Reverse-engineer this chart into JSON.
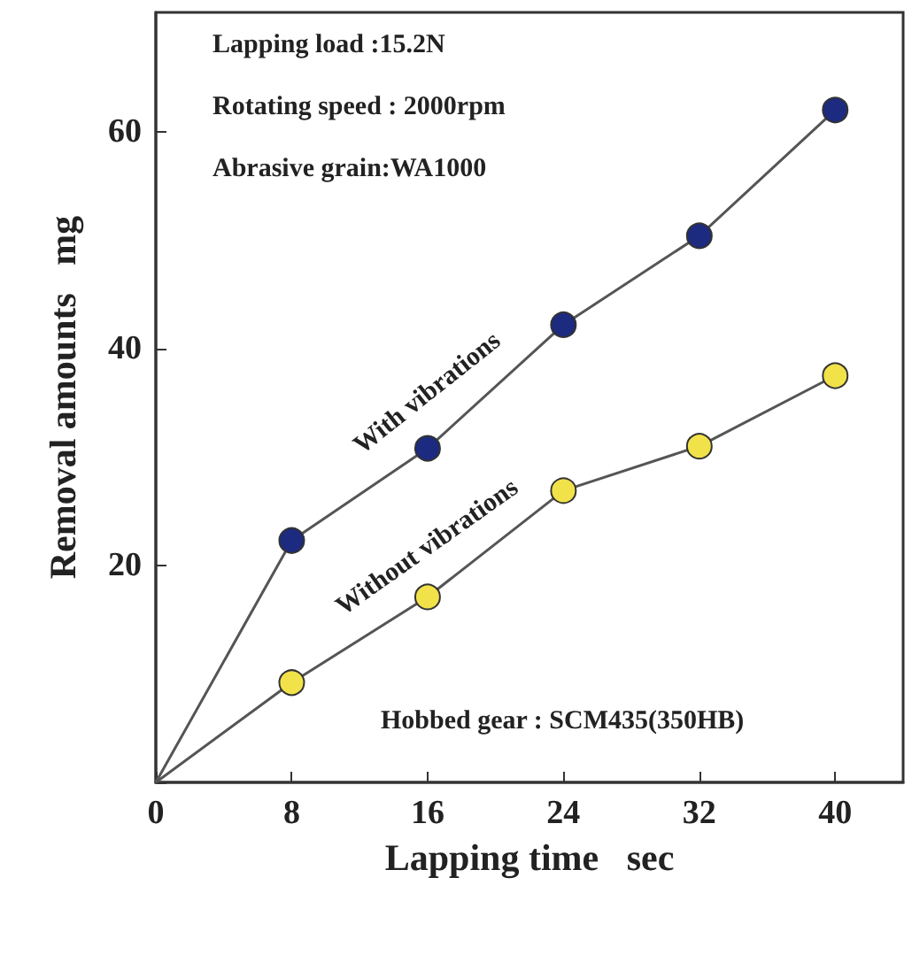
{
  "chart_data": {
    "type": "line",
    "xlabel": "Lapping time   sec",
    "ylabel": "Removal amounts   mg",
    "x": [
      0,
      8,
      16,
      24,
      32,
      40
    ],
    "series": [
      {
        "name": "With vibrations",
        "color": "#1c2a80",
        "values": [
          0,
          22.3,
          30.8,
          42.2,
          50.4,
          62
        ]
      },
      {
        "name": "Without vibrations",
        "color": "#f2e24a",
        "values": [
          0,
          9.2,
          17.1,
          26.9,
          31,
          37.5
        ]
      }
    ],
    "xlim": [
      0,
      44
    ],
    "xticks": [
      0,
      8,
      16,
      24,
      32,
      40
    ],
    "ylim": [
      0,
      71
    ],
    "yticks": [
      {
        "value": 0,
        "label": null
      },
      20,
      40,
      60
    ],
    "annotations": [
      "Lapping load :15.2N",
      "Rotating speed : 2000rpm",
      "Abrasive grain:WA1000",
      "Hobbed gear : SCM435(350HB)"
    ],
    "grid": false,
    "legend": false,
    "marker": "circle",
    "line_style": "solid"
  }
}
